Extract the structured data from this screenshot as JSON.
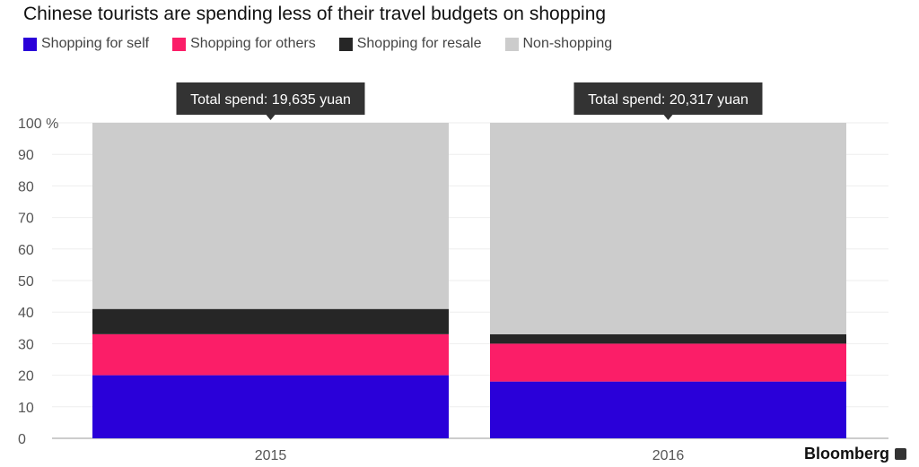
{
  "chart_data": {
    "type": "bar",
    "stacked": true,
    "title": "Chinese tourists are spending less of their travel budgets on shopping",
    "categories": [
      "2015",
      "2016"
    ],
    "series": [
      {
        "name": "Shopping for self",
        "color": "#2a00d9",
        "values": [
          20,
          18
        ]
      },
      {
        "name": "Shopping for others",
        "color": "#fb1e68",
        "values": [
          13,
          12
        ]
      },
      {
        "name": "Shopping for resale",
        "color": "#262626",
        "values": [
          8,
          3
        ]
      },
      {
        "name": "Non-shopping",
        "color": "#cccccc",
        "values": [
          59,
          67
        ]
      }
    ],
    "annotations": [
      "Total spend: 19,635 yuan",
      "Total spend: 20,317 yuan"
    ],
    "yticks": [
      "0",
      "10",
      "20",
      "30",
      "40",
      "50",
      "60",
      "70",
      "80",
      "90",
      "100 %"
    ],
    "ylim": [
      0,
      100
    ],
    "grid": true,
    "legend_position": "top-left"
  },
  "source": "Bloomberg"
}
